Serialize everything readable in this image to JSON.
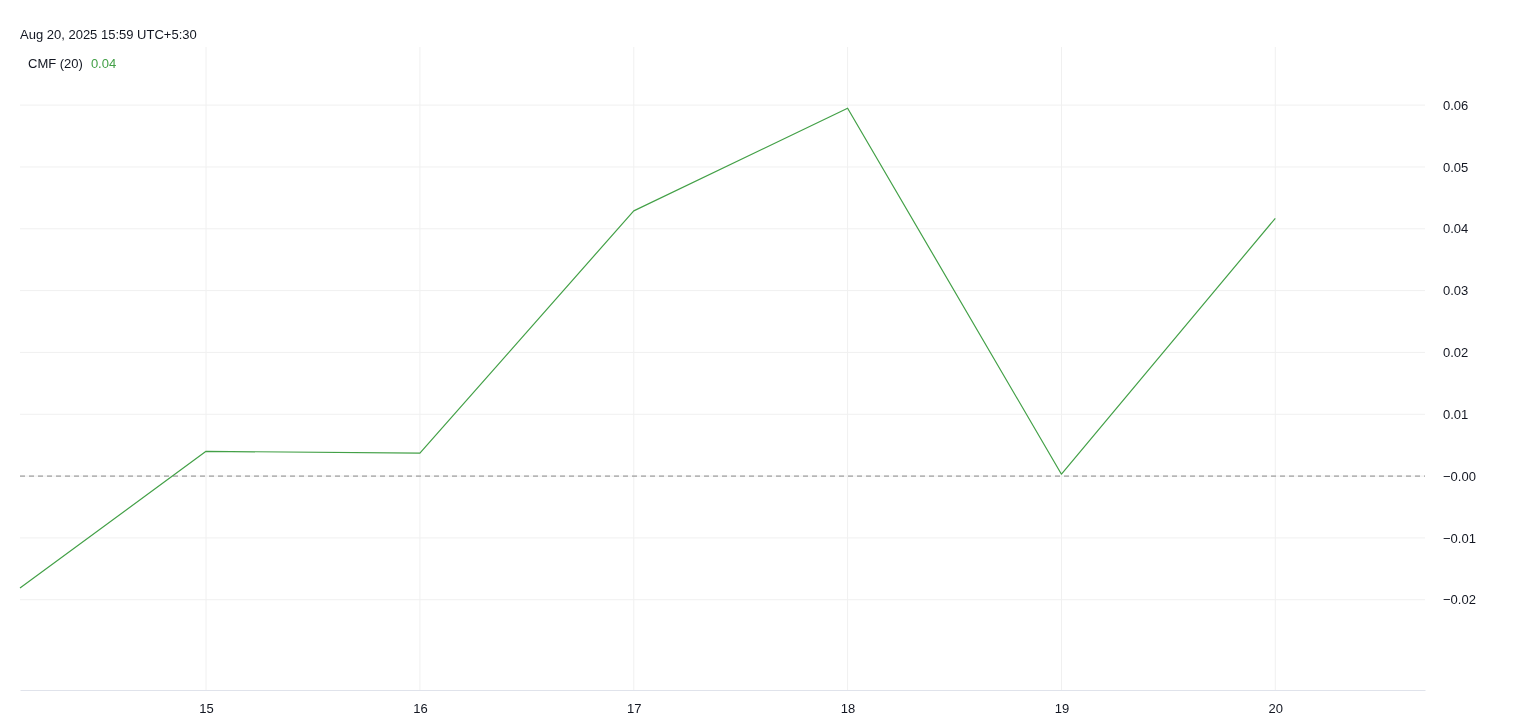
{
  "chart_data": {
    "type": "line",
    "title": "CMF (20)",
    "annotations": [
      "0.04",
      "Aug 20, 2025 15:59 UTC+5:30"
    ],
    "x": [
      14.13,
      15,
      16,
      17,
      18,
      19,
      20
    ],
    "series": [
      {
        "color": "#43a047",
        "values": [
          -0.0181,
          0.004,
          0.0037,
          0.0429,
          0.0595,
          0.0003,
          0.0417
        ]
      }
    ],
    "xlim": [
      14.13,
      20.7
    ],
    "xticks": [
      15,
      16,
      17,
      18,
      19,
      20
    ],
    "ylim": [
      -0.0346,
      0.0694
    ],
    "yticks": [
      {
        "value": -0.02,
        "label": "−0.02"
      },
      {
        "value": -0.01,
        "label": "−0.01"
      },
      {
        "value": 0,
        "label": "−0.00"
      },
      {
        "value": 0.01,
        "label": "0.01"
      },
      {
        "value": 0.02,
        "label": "0.02"
      },
      {
        "value": 0.03,
        "label": "0.03"
      },
      {
        "value": 0.04,
        "label": "0.04"
      },
      {
        "value": 0.05,
        "label": "0.05"
      },
      {
        "value": 0.06,
        "label": "0.06"
      }
    ],
    "ref_lines": [
      {
        "axis": "y",
        "value": 0,
        "color": "#888888",
        "line_style": "dashed"
      }
    ],
    "grid": true,
    "marker": "none",
    "line_style": "solid"
  }
}
